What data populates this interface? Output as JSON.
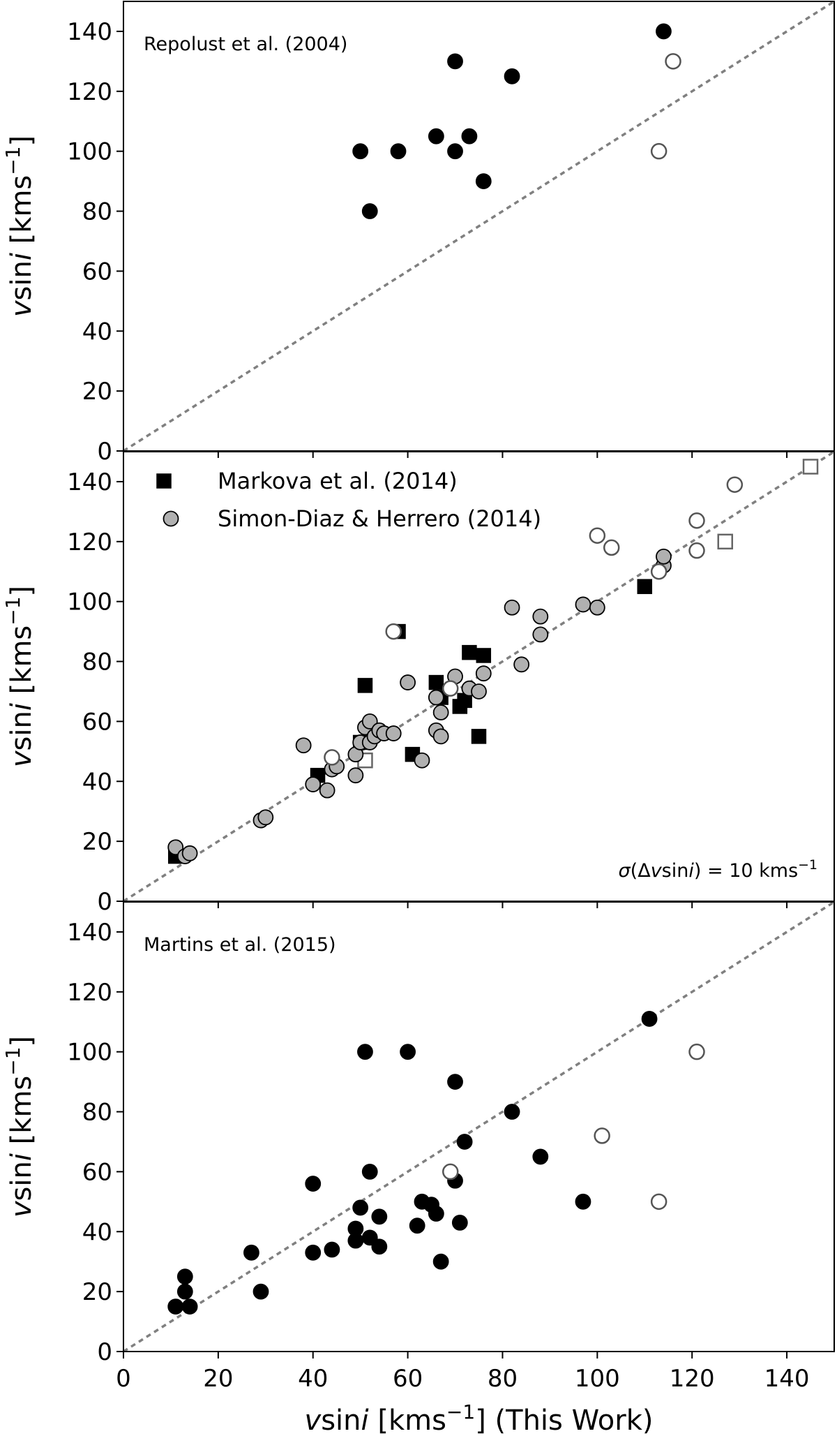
{
  "chart_data": [
    {
      "type": "scatter",
      "title": "Repolust et al. (2004)",
      "ylabel_parts": [
        "v",
        "sin",
        "i",
        " [kms",
        "−1",
        "]"
      ],
      "xlim": [
        0,
        150
      ],
      "ylim": [
        0,
        150
      ],
      "xticks": [
        0,
        20,
        40,
        60,
        80,
        100,
        120,
        140
      ],
      "yticks": [
        0,
        20,
        40,
        60,
        80,
        100,
        120,
        140
      ],
      "show_xtick_labels": false,
      "reference_line": "one-to-one dashed",
      "series": [
        {
          "name": "Repolust et al. (2004)",
          "marker": "circle",
          "fill": "#000000",
          "edge": "#000000",
          "points": [
            [
              50,
              100
            ],
            [
              52,
              80
            ],
            [
              58,
              100
            ],
            [
              66,
              105
            ],
            [
              70,
              130
            ],
            [
              70,
              100
            ],
            [
              73,
              105
            ],
            [
              76,
              90
            ],
            [
              82,
              125
            ],
            [
              114,
              140
            ]
          ]
        },
        {
          "name": "Repolust et al. (2004) lower limits",
          "marker": "circle",
          "fill": "#ffffff",
          "edge": "#555555",
          "points": [
            [
              113,
              100
            ],
            [
              116,
              130
            ]
          ]
        }
      ]
    },
    {
      "type": "scatter",
      "title": "",
      "ylabel_parts": [
        "v",
        "sin",
        "i",
        " [kms",
        "−1",
        "]"
      ],
      "xlim": [
        0,
        150
      ],
      "ylim": [
        0,
        150
      ],
      "xticks": [
        0,
        20,
        40,
        60,
        80,
        100,
        120,
        140
      ],
      "yticks": [
        0,
        20,
        40,
        60,
        80,
        100,
        120,
        140
      ],
      "show_xtick_labels": false,
      "reference_line": "one-to-one dashed",
      "legend": [
        {
          "label": "Markova et al. (2014)",
          "marker": "square",
          "fill": "#000000",
          "edge": "#000000"
        },
        {
          "label": "Simon-Diaz & Herrero (2014)",
          "marker": "circle",
          "fill": "#b0b0b0",
          "edge": "#000000"
        }
      ],
      "annotation_parts": [
        "σ",
        "(Δ",
        "v",
        "sin",
        "i",
        ") = 10 kms",
        "−1"
      ],
      "series": [
        {
          "name": "Markova et al. (2014)",
          "marker": "square",
          "fill": "#000000",
          "edge": "#000000",
          "points": [
            [
              11,
              15
            ],
            [
              41,
              42
            ],
            [
              50,
              53
            ],
            [
              51,
              72
            ],
            [
              58,
              90
            ],
            [
              61,
              49
            ],
            [
              66,
              73
            ],
            [
              67,
              68
            ],
            [
              71,
              65
            ],
            [
              72,
              67
            ],
            [
              73,
              83
            ],
            [
              75,
              55
            ],
            [
              76,
              82
            ],
            [
              110,
              105
            ]
          ]
        },
        {
          "name": "Markova et al. (2014) open",
          "marker": "square",
          "fill": "#ffffff",
          "edge": "#666666",
          "points": [
            [
              51,
              47
            ],
            [
              127,
              120
            ],
            [
              145,
              145
            ]
          ]
        },
        {
          "name": "Simon-Diaz & Herrero (2014)",
          "marker": "circle",
          "fill": "#b0b0b0",
          "edge": "#000000",
          "points": [
            [
              11,
              18
            ],
            [
              13,
              15
            ],
            [
              14,
              16
            ],
            [
              29,
              27
            ],
            [
              30,
              28
            ],
            [
              38,
              52
            ],
            [
              40,
              39
            ],
            [
              43,
              37
            ],
            [
              44,
              44
            ],
            [
              45,
              45
            ],
            [
              49,
              42
            ],
            [
              49,
              49
            ],
            [
              50,
              53
            ],
            [
              51,
              58
            ],
            [
              52,
              53
            ],
            [
              52,
              60
            ],
            [
              53,
              55
            ],
            [
              54,
              57
            ],
            [
              55,
              56
            ],
            [
              57,
              56
            ],
            [
              60,
              73
            ],
            [
              63,
              47
            ],
            [
              66,
              57
            ],
            [
              66,
              68
            ],
            [
              67,
              63
            ],
            [
              67,
              55
            ],
            [
              70,
              75
            ],
            [
              73,
              71
            ],
            [
              75,
              70
            ],
            [
              76,
              76
            ],
            [
              82,
              98
            ],
            [
              84,
              79
            ],
            [
              88,
              95
            ],
            [
              88,
              89
            ],
            [
              97,
              99
            ],
            [
              100,
              98
            ],
            [
              114,
              112
            ],
            [
              114,
              115
            ]
          ]
        },
        {
          "name": "Simon-Diaz & Herrero (2014) open",
          "marker": "circle",
          "fill": "#ffffff",
          "edge": "#555555",
          "points": [
            [
              44,
              48
            ],
            [
              57,
              90
            ],
            [
              69,
              71
            ],
            [
              100,
              122
            ],
            [
              103,
              118
            ],
            [
              113,
              110
            ],
            [
              121,
              127
            ],
            [
              121,
              117
            ],
            [
              129,
              139
            ]
          ]
        }
      ]
    },
    {
      "type": "scatter",
      "title": "Martins et al. (2015)",
      "ylabel_parts": [
        "v",
        "sin",
        "i",
        " [kms",
        "−1",
        "]"
      ],
      "xlabel_parts": [
        "v",
        "sin",
        "i",
        " [kms",
        "−1",
        "] (This Work)"
      ],
      "xlim": [
        0,
        150
      ],
      "ylim": [
        0,
        150
      ],
      "xticks": [
        0,
        20,
        40,
        60,
        80,
        100,
        120,
        140
      ],
      "yticks": [
        0,
        20,
        40,
        60,
        80,
        100,
        120,
        140
      ],
      "show_xtick_labels": true,
      "reference_line": "one-to-one dashed",
      "series": [
        {
          "name": "Martins et al. (2015)",
          "marker": "circle",
          "fill": "#000000",
          "edge": "#000000",
          "points": [
            [
              11,
              15
            ],
            [
              13,
              25
            ],
            [
              13,
              20
            ],
            [
              14,
              15
            ],
            [
              27,
              33
            ],
            [
              29,
              20
            ],
            [
              40,
              56
            ],
            [
              40,
              33
            ],
            [
              44,
              34
            ],
            [
              49,
              41
            ],
            [
              49,
              37
            ],
            [
              50,
              48
            ],
            [
              51,
              100
            ],
            [
              52,
              60
            ],
            [
              52,
              38
            ],
            [
              54,
              45
            ],
            [
              54,
              35
            ],
            [
              60,
              100
            ],
            [
              62,
              42
            ],
            [
              63,
              50
            ],
            [
              65,
              49
            ],
            [
              66,
              46
            ],
            [
              67,
              30
            ],
            [
              70,
              90
            ],
            [
              70,
              57
            ],
            [
              71,
              43
            ],
            [
              72,
              70
            ],
            [
              82,
              80
            ],
            [
              88,
              65
            ],
            [
              97,
              50
            ],
            [
              111,
              111
            ]
          ]
        },
        {
          "name": "Martins et al. (2015) open",
          "marker": "circle",
          "fill": "#ffffff",
          "edge": "#555555",
          "points": [
            [
              69,
              60
            ],
            [
              101,
              72
            ],
            [
              113,
              50
            ],
            [
              121,
              100
            ]
          ]
        }
      ]
    }
  ]
}
